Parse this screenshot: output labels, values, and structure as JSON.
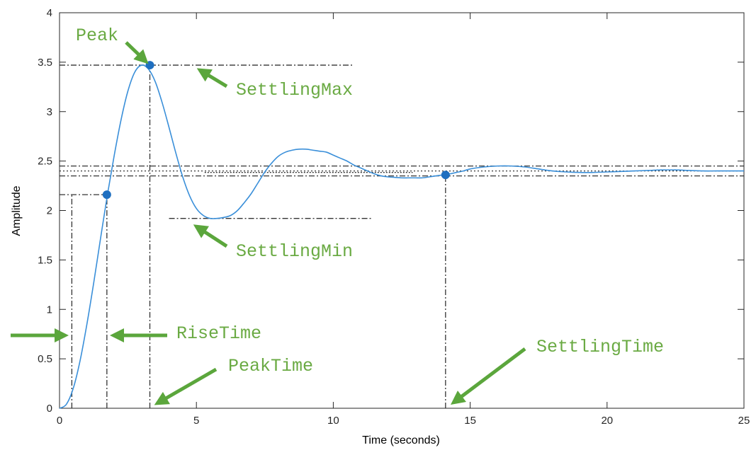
{
  "chart_data": {
    "type": "line",
    "title": "",
    "xlabel": "Time (seconds)",
    "ylabel": "Amplitude",
    "xlim": [
      0,
      25
    ],
    "ylim": [
      0,
      4
    ],
    "x_ticks": [
      0,
      5,
      10,
      15,
      20,
      25
    ],
    "x_tick_labels": [
      "0",
      "5",
      "10",
      "15",
      "20",
      "25"
    ],
    "y_ticks": [
      0,
      0.5,
      1,
      1.5,
      2,
      2.5,
      3,
      3.5,
      4
    ],
    "y_tick_labels": [
      "0",
      "0.5",
      "1",
      "1.5",
      "2",
      "2.5",
      "3",
      "3.5",
      "4"
    ],
    "grid": false,
    "series": [
      {
        "name": "",
        "color": "#3a8fd9",
        "x": [
          0,
          0.25,
          0.5,
          0.75,
          1,
          1.25,
          1.5,
          1.75,
          2,
          2.25,
          2.5,
          2.75,
          3,
          3.25,
          3.5,
          3.75,
          4,
          4.25,
          4.5,
          4.75,
          5,
          5.25,
          5.5,
          5.75,
          6,
          6.25,
          6.5,
          6.75,
          7,
          7.25,
          7.5,
          7.75,
          8,
          8.25,
          8.5,
          8.75,
          9,
          9.25,
          9.5,
          9.75,
          10,
          10.25,
          10.5,
          10.75,
          11,
          11.25,
          11.5,
          11.75,
          12,
          12.25,
          12.5,
          12.75,
          13,
          13.25,
          13.5,
          13.75,
          14,
          14.25,
          14.5,
          14.75,
          15,
          15.5,
          16,
          16.5,
          17,
          17.5,
          18,
          18.5,
          19,
          19.5,
          20,
          20.5,
          21,
          21.5,
          22,
          22.5,
          23,
          23.5,
          24,
          24.5,
          25
        ],
        "y": [
          0,
          0.04,
          0.2,
          0.48,
          0.85,
          1.27,
          1.72,
          2.16,
          2.56,
          2.92,
          3.21,
          3.4,
          3.47,
          3.43,
          3.3,
          3.09,
          2.84,
          2.58,
          2.34,
          2.15,
          2.02,
          1.95,
          1.92,
          1.92,
          1.93,
          1.95,
          2.0,
          2.08,
          2.17,
          2.28,
          2.39,
          2.48,
          2.55,
          2.59,
          2.61,
          2.62,
          2.62,
          2.61,
          2.6,
          2.59,
          2.56,
          2.53,
          2.5,
          2.46,
          2.43,
          2.4,
          2.37,
          2.35,
          2.34,
          2.335,
          2.33,
          2.33,
          2.33,
          2.33,
          2.34,
          2.35,
          2.36,
          2.37,
          2.385,
          2.4,
          2.42,
          2.44,
          2.45,
          2.45,
          2.44,
          2.42,
          2.4,
          2.39,
          2.385,
          2.385,
          2.39,
          2.395,
          2.4,
          2.405,
          2.41,
          2.41,
          2.405,
          2.4,
          2.4,
          2.4,
          2.4
        ]
      }
    ],
    "markers": [
      {
        "name": "rise-end",
        "x": 1.73,
        "y": 2.16
      },
      {
        "name": "peak",
        "x": 3.3,
        "y": 3.47
      },
      {
        "name": "settling",
        "x": 14.1,
        "y": 2.36
      }
    ],
    "reference_lines": {
      "peak_level": 3.47,
      "rise_level": 2.16,
      "settling_min": 1.92,
      "settling_max": 3.46,
      "upper_band": 2.45,
      "lower_band": 2.35,
      "final_value": 2.4,
      "rise_time_start": 0.45,
      "rise_time_end": 1.73,
      "peak_time": 3.3,
      "settling_time": 14.1
    },
    "annotations": {
      "peak": "Peak",
      "settling_max": "SettlingMax",
      "settling_min": "SettlingMin",
      "rise_time": "RiseTime",
      "peak_time": "PeakTime",
      "settling_time": "SettlingTime"
    },
    "colors": {
      "curve": "#3a8fd9",
      "marker": "#1f6fc0",
      "arrow": "#5ba63c",
      "annotation": "#6aaa43",
      "guide": "#333333"
    }
  }
}
